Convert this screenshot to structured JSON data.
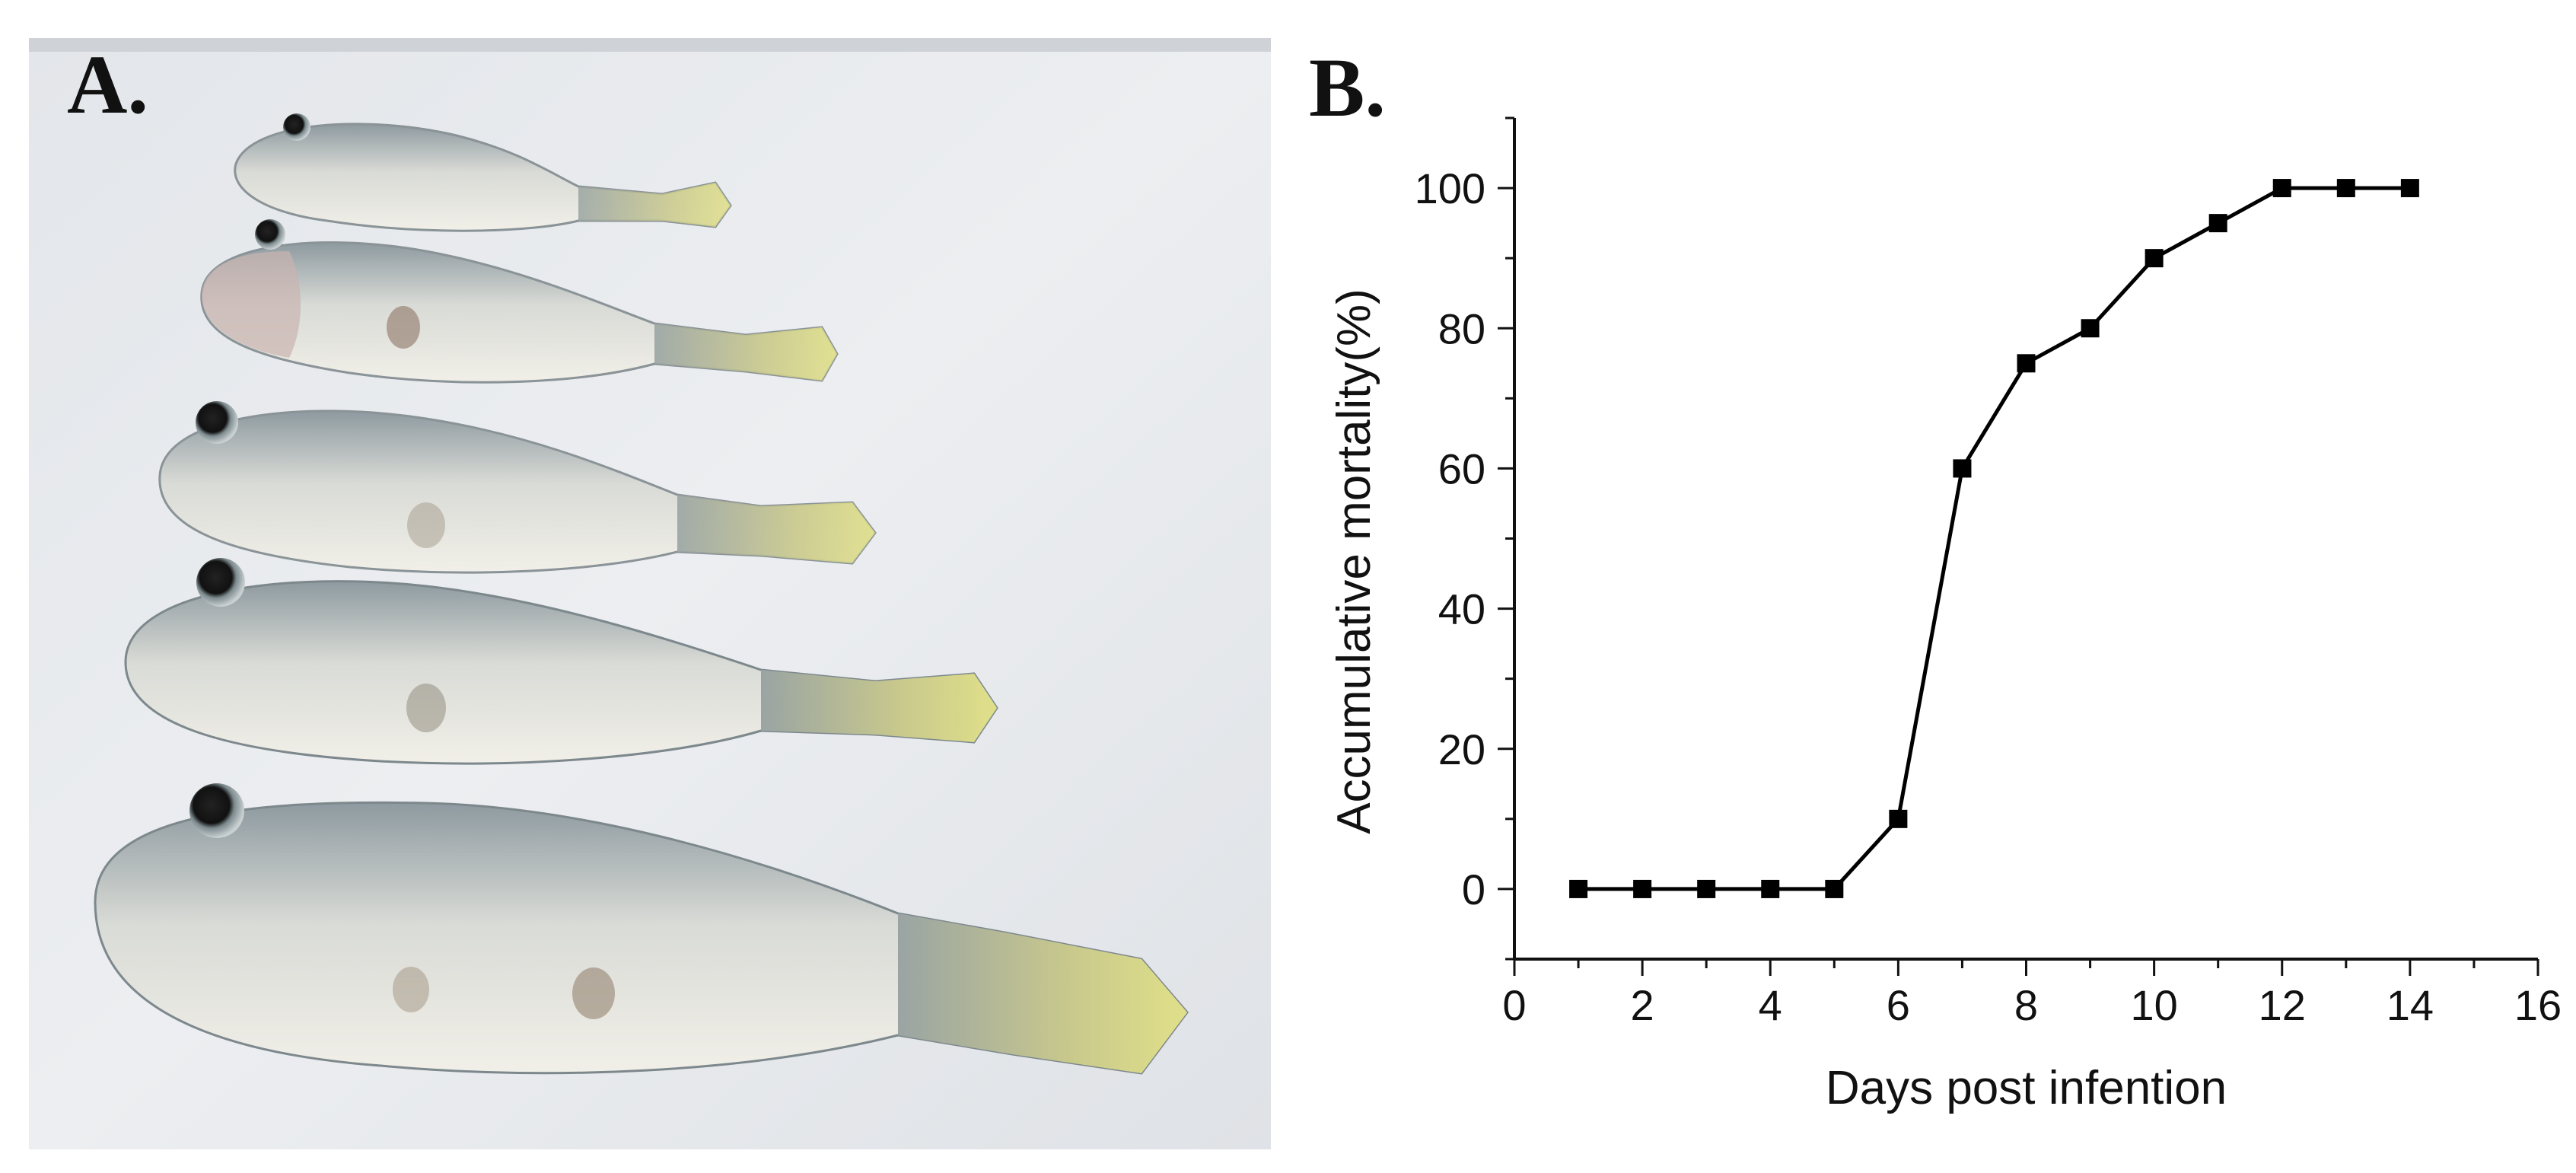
{
  "panel_a": {
    "label": "A.",
    "photo": "five fish specimens on white tray"
  },
  "panel_b": {
    "label": "B."
  },
  "chart_data": {
    "type": "line",
    "title": "",
    "xlabel": "Days post infention",
    "ylabel": "Accumulative mortality(%)",
    "xlim": [
      0,
      16
    ],
    "ylim": [
      -10,
      110
    ],
    "xticks": [
      0,
      2,
      4,
      6,
      8,
      10,
      12,
      14,
      16
    ],
    "yticks": [
      0,
      20,
      40,
      60,
      80,
      100
    ],
    "marker": "square",
    "color": "#000000",
    "grid": false,
    "series": [
      {
        "x": [
          1,
          2,
          3,
          4,
          5,
          6,
          7,
          8,
          9,
          10,
          11,
          12,
          13,
          14
        ],
        "y": [
          0,
          0,
          0,
          0,
          0,
          10,
          60,
          75,
          80,
          90,
          95,
          100,
          100,
          100
        ]
      }
    ]
  }
}
